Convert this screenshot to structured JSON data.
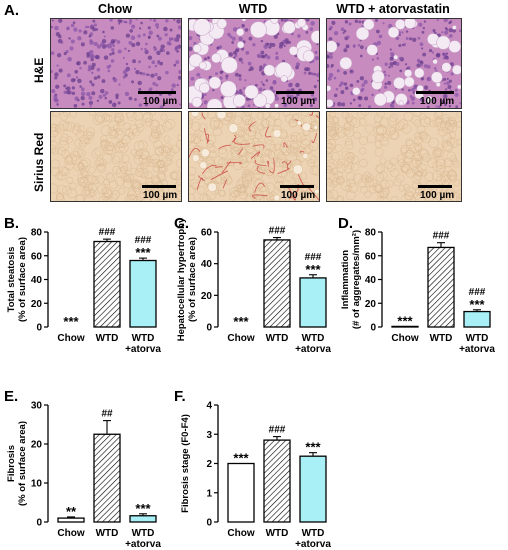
{
  "panel_a": {
    "letter": "A.",
    "columns": [
      "Chow",
      "WTD",
      "WTD + atorvastatin"
    ],
    "rows": [
      "H&E",
      "Sirius Red"
    ],
    "scale_bar_label": "100 µm"
  },
  "colors": {
    "he_bg": "#c88bc0",
    "sirius_bg": "#ecd3b3",
    "atorva_fill": "#a8f0f6",
    "bar_stroke": "#000000"
  },
  "chart_data": [
    {
      "letter": "B.",
      "type": "bar",
      "ylabel": [
        "Total steatosis",
        "(% of surface area)"
      ],
      "categories": [
        "Chow",
        "WTD",
        "WTD\n+atorva"
      ],
      "values": [
        0,
        72,
        56
      ],
      "errors": [
        0,
        2,
        2
      ],
      "ylim": [
        0,
        80
      ],
      "yticks": [
        0,
        20,
        40,
        60,
        80
      ],
      "annotations": [
        [
          "***"
        ],
        [
          "###"
        ],
        [
          "###",
          "***"
        ]
      ]
    },
    {
      "letter": "C.",
      "type": "bar",
      "ylabel": [
        "Hepatocellular hypertrophy",
        "(% of surface area)"
      ],
      "categories": [
        "Chow",
        "WTD",
        "WTD\n+atorva"
      ],
      "values": [
        0,
        55,
        31
      ],
      "errors": [
        0,
        1.5,
        2
      ],
      "ylim": [
        0,
        60
      ],
      "yticks": [
        0,
        20,
        40,
        60
      ],
      "annotations": [
        [
          "***"
        ],
        [
          "###"
        ],
        [
          "###",
          "***"
        ]
      ]
    },
    {
      "letter": "D.",
      "type": "bar",
      "ylabel": [
        "Inflammation",
        "(# of aggregates/mm²)"
      ],
      "categories": [
        "Chow",
        "WTD",
        "WTD\n+atorva"
      ],
      "values": [
        0.5,
        67,
        13
      ],
      "errors": [
        0,
        4,
        1.5
      ],
      "ylim": [
        0,
        80
      ],
      "yticks": [
        0,
        20,
        40,
        60,
        80
      ],
      "annotations": [
        [
          "***"
        ],
        [
          "###"
        ],
        [
          "###",
          "***"
        ]
      ]
    },
    {
      "letter": "E.",
      "type": "bar",
      "ylabel": [
        "Fibrosis",
        "(% of surface area)"
      ],
      "categories": [
        "Chow",
        "WTD",
        "WTD\n+atorva"
      ],
      "values": [
        1,
        22.5,
        1.6
      ],
      "errors": [
        0.3,
        3.5,
        0.5
      ],
      "ylim": [
        0,
        30
      ],
      "yticks": [
        0,
        10,
        20,
        30
      ],
      "annotations": [
        [
          "**"
        ],
        [
          "##"
        ],
        [
          "***"
        ]
      ]
    },
    {
      "letter": "F.",
      "type": "bar",
      "ylabel": [
        "Fibrosis stage (F0-F4)"
      ],
      "categories": [
        "Chow",
        "WTD",
        "WTD\n+atorva"
      ],
      "values": [
        2.0,
        2.8,
        2.25
      ],
      "errors": [
        0,
        0.12,
        0.12
      ],
      "ylim": [
        0,
        4
      ],
      "yticks": [
        0,
        1,
        2,
        3,
        4
      ],
      "annotations": [
        [
          "***"
        ],
        [
          "###"
        ],
        [
          "***"
        ]
      ]
    }
  ]
}
